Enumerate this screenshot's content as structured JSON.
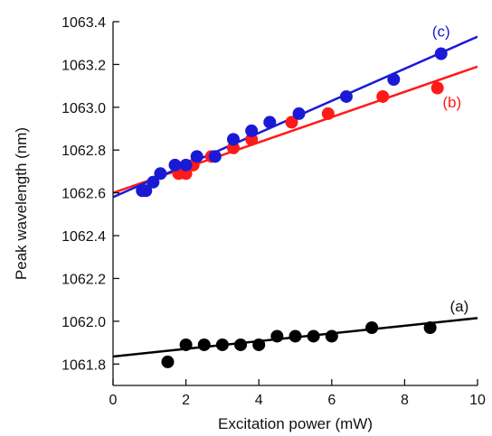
{
  "chart_data": {
    "type": "scatter",
    "title": "",
    "xlabel": "Excitation power (mW)",
    "ylabel": "Peak wavelength (nm)",
    "xlim": [
      0,
      10
    ],
    "ylim": [
      1061.7,
      1063.4
    ],
    "xticks": [
      0,
      2,
      4,
      6,
      8,
      10
    ],
    "yticks": [
      1061.8,
      1062.0,
      1062.2,
      1062.4,
      1062.6,
      1062.8,
      1063.0,
      1063.2,
      1063.4
    ],
    "ytick_labels": [
      "1061.8",
      "1062.0",
      "1062.2",
      "1062.4",
      "1062.6",
      "1062.8",
      "1063.0",
      "1063.2",
      "1063.4"
    ],
    "grid": false,
    "series": [
      {
        "name": "(a)",
        "color": "#000000",
        "x": [
          1.5,
          2.0,
          2.5,
          3.0,
          3.5,
          4.0,
          4.5,
          5.0,
          5.5,
          6.0,
          7.1,
          8.7
        ],
        "y": [
          1061.81,
          1061.89,
          1061.89,
          1061.89,
          1061.89,
          1061.89,
          1061.93,
          1061.93,
          1061.93,
          1061.93,
          1061.97,
          1061.97
        ],
        "fit": {
          "x": [
            0,
            10
          ],
          "y": [
            1061.835,
            1062.015
          ]
        }
      },
      {
        "name": "(b)",
        "color": "#ff1a1a",
        "x": [
          1.8,
          2.0,
          2.2,
          2.7,
          3.3,
          3.8,
          4.9,
          5.9,
          7.4,
          8.9
        ],
        "y": [
          1062.69,
          1062.69,
          1062.73,
          1062.77,
          1062.81,
          1062.85,
          1062.93,
          1062.97,
          1063.05,
          1063.09
        ],
        "fit": {
          "x": [
            0,
            10
          ],
          "y": [
            1062.6,
            1063.19
          ]
        }
      },
      {
        "name": "(c)",
        "color": "#1a1ad6",
        "x": [
          0.8,
          0.9,
          1.1,
          1.3,
          1.7,
          2.0,
          2.3,
          2.8,
          3.3,
          3.8,
          4.3,
          5.1,
          6.4,
          7.7,
          9.0
        ],
        "y": [
          1062.61,
          1062.61,
          1062.65,
          1062.69,
          1062.73,
          1062.73,
          1062.77,
          1062.77,
          1062.85,
          1062.89,
          1062.93,
          1062.97,
          1063.05,
          1063.13,
          1063.25
        ],
        "fit": {
          "x": [
            0,
            10
          ],
          "y": [
            1062.58,
            1063.33
          ]
        }
      }
    ]
  }
}
